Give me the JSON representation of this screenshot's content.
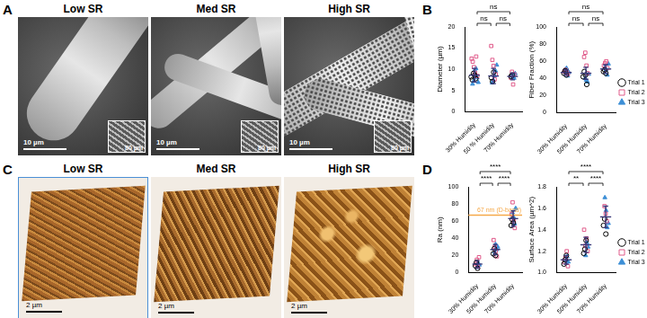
{
  "image_panels": [
    {
      "label": "A",
      "images": [
        {
          "title": "Low SR",
          "scale_bar": "10 µm",
          "inset_scale_bar": "80 µm"
        },
        {
          "title": "Med SR",
          "scale_bar": "10 µm",
          "inset_scale_bar": "80 µm"
        },
        {
          "title": "High SR",
          "scale_bar": "10 µm",
          "inset_scale_bar": "80 µm"
        }
      ]
    },
    {
      "label": "C",
      "images": [
        {
          "title": "Low SR",
          "scale_bar": "2 µm"
        },
        {
          "title": "Med SR",
          "scale_bar": "2 µm"
        },
        {
          "title": "High SR",
          "scale_bar": "2 µm"
        }
      ]
    }
  ],
  "chart_data": [
    {
      "type": "scatter",
      "panel": "B",
      "categories": [
        "30% Humidity",
        "50 % Humidity",
        "70% Humidity"
      ],
      "ylabel": "Diameter (µm)",
      "ylim": [
        0,
        20
      ],
      "yticks": [
        0,
        5,
        10,
        15,
        20
      ],
      "grid": false,
      "series": [
        {
          "name": "Trial 1",
          "color": "#000000",
          "marker": "open_circle",
          "values": [
            [
              8.2,
              7.5,
              9.0,
              8.6,
              7.8
            ],
            [
              8.0,
              7.1,
              9.3
            ],
            [
              8.3,
              8.6
            ]
          ]
        },
        {
          "name": "Trial 2",
          "color": "#e05a8a",
          "marker": "open_square",
          "values": [
            [
              12.5,
              11.8,
              10.5,
              9.2,
              13.0,
              8.4
            ],
            [
              15.5,
              12.2,
              10.8,
              7.6,
              8.8
            ],
            [
              8.0,
              9.4,
              6.4,
              8.8
            ]
          ]
        },
        {
          "name": "Trial 3",
          "color": "#3d8fd6",
          "marker": "triangle",
          "values": [
            [
              6.5,
              7.2,
              9.8,
              10.2,
              8.0,
              6.9
            ],
            [
              6.8,
              7.4,
              8.5,
              9.6,
              11.0
            ],
            [
              8.5,
              8.1,
              7.9,
              9.0
            ]
          ]
        }
      ],
      "means": [
        8.6,
        8.4,
        8.3
      ],
      "errors": [
        1.6,
        1.8,
        0.8
      ],
      "comparisons": [
        {
          "from": "30% Humidity",
          "to": "70% Humidity",
          "text": "ns"
        },
        {
          "from": "30% Humidity",
          "to": "50 % Humidity",
          "text": "ns"
        },
        {
          "from": "50 % Humidity",
          "to": "70% Humidity",
          "text": "ns"
        }
      ]
    },
    {
      "type": "scatter",
      "categories": [
        "30% Humidity",
        "50% Humidity",
        "70% Humidity"
      ],
      "ylabel": "Fiber Fraction (%)",
      "ylim": [
        0,
        100
      ],
      "yticks": [
        0,
        20,
        40,
        60,
        80,
        100
      ],
      "grid": false,
      "legend": "right",
      "series": [
        {
          "name": "Trial 1",
          "color": "#000000",
          "marker": "open_circle",
          "values": [
            [
              46,
              49,
              44
            ],
            [
              42,
              48,
              44,
              33
            ],
            [
              48,
              50,
              46
            ]
          ]
        },
        {
          "name": "Trial 2",
          "color": "#e05a8a",
          "marker": "open_square",
          "values": [
            [
              48,
              50,
              47,
              45
            ],
            [
              65,
              70,
              55,
              46
            ],
            [
              55,
              58,
              60,
              52
            ]
          ]
        },
        {
          "name": "Trial 3",
          "color": "#3d8fd6",
          "marker": "triangle",
          "values": [
            [
              50,
              52,
              43,
              47
            ],
            [
              40,
              38,
              36,
              45
            ],
            [
              53,
              50,
              44,
              57
            ]
          ]
        }
      ],
      "means": [
        47,
        46,
        51
      ],
      "errors": [
        3,
        7,
        5
      ],
      "comparisons": [
        {
          "from": "30% Humidity",
          "to": "70% Humidity",
          "text": "ns"
        },
        {
          "from": "30% Humidity",
          "to": "50% Humidity",
          "text": "ns"
        },
        {
          "from": "50% Humidity",
          "to": "70% Humidity",
          "text": "ns"
        }
      ]
    },
    {
      "type": "scatter",
      "panel": "D",
      "categories": [
        "30% Humidity",
        "50% Humidity",
        "70% Humidity"
      ],
      "ylabel": "Ra (nm)",
      "ylim": [
        0,
        100
      ],
      "yticks": [
        0,
        20,
        40,
        60,
        80,
        100
      ],
      "grid": false,
      "series": [
        {
          "name": "Trial 1",
          "color": "#000000",
          "marker": "open_circle",
          "values": [
            [
              8,
              12,
              5
            ],
            [
              22,
              28,
              20
            ],
            [
              55,
              62,
              58
            ]
          ]
        },
        {
          "name": "Trial 2",
          "color": "#e05a8a",
          "marker": "open_square",
          "values": [
            [
              10,
              15,
              7,
              18
            ],
            [
              38,
              30,
              25,
              19
            ],
            [
              68,
              82,
              60,
              52
            ]
          ]
        },
        {
          "name": "Trial 3",
          "color": "#3d8fd6",
          "marker": "triangle",
          "values": [
            [
              6,
              11,
              9
            ],
            [
              24,
              33,
              27,
              30
            ],
            [
              70,
              65,
              57,
              75
            ]
          ]
        }
      ],
      "means": [
        10,
        27,
        63
      ],
      "errors": [
        4,
        6,
        9
      ],
      "reference_line": {
        "value": 67,
        "label": "67 nm (D-band)",
        "color": "#f5a94a"
      },
      "comparisons": [
        {
          "from": "30% Humidity",
          "to": "70% Humidity",
          "text": "****"
        },
        {
          "from": "30% Humidity",
          "to": "50% Humidity",
          "text": "****"
        },
        {
          "from": "50% Humidity",
          "to": "70% Humidity",
          "text": "****"
        }
      ]
    },
    {
      "type": "scatter",
      "categories": [
        "30% Humidity",
        "50% Humidity",
        "70% Humidity"
      ],
      "ylabel": "Surface Area (µm^2)",
      "ylim": [
        1,
        1.8
      ],
      "yticks": [
        {
          "value": 1,
          "label": "1.0"
        },
        1.2,
        1.4,
        1.6,
        1.8
      ],
      "grid": false,
      "legend": "right",
      "series": [
        {
          "name": "Trial 1",
          "color": "#000000",
          "marker": "open_circle",
          "values": [
            [
              1.08,
              1.12,
              1.16
            ],
            [
              1.18,
              1.22,
              1.3
            ],
            [
              1.44,
              1.5,
              1.36
            ]
          ]
        },
        {
          "name": "Trial 2",
          "color": "#e05a8a",
          "marker": "open_square",
          "values": [
            [
              1.1,
              1.14,
              1.2,
              1.06
            ],
            [
              1.4,
              1.25,
              1.32,
              1.2
            ],
            [
              1.62,
              1.55,
              1.48
            ]
          ]
        },
        {
          "name": "Trial 3",
          "color": "#3d8fd6",
          "marker": "triangle",
          "values": [
            [
              1.12,
              1.15,
              1.1
            ],
            [
              1.16,
              1.28,
              1.24
            ],
            [
              1.7,
              1.58,
              1.42,
              1.46
            ]
          ]
        }
      ],
      "means": [
        1.12,
        1.26,
        1.52
      ],
      "errors": [
        0.04,
        0.07,
        0.1
      ],
      "comparisons": [
        {
          "from": "30% Humidity",
          "to": "70% Humidity",
          "text": "****"
        },
        {
          "from": "30% Humidity",
          "to": "50% Humidity",
          "text": "**"
        },
        {
          "from": "50% Humidity",
          "to": "70% Humidity",
          "text": "****"
        }
      ]
    }
  ]
}
